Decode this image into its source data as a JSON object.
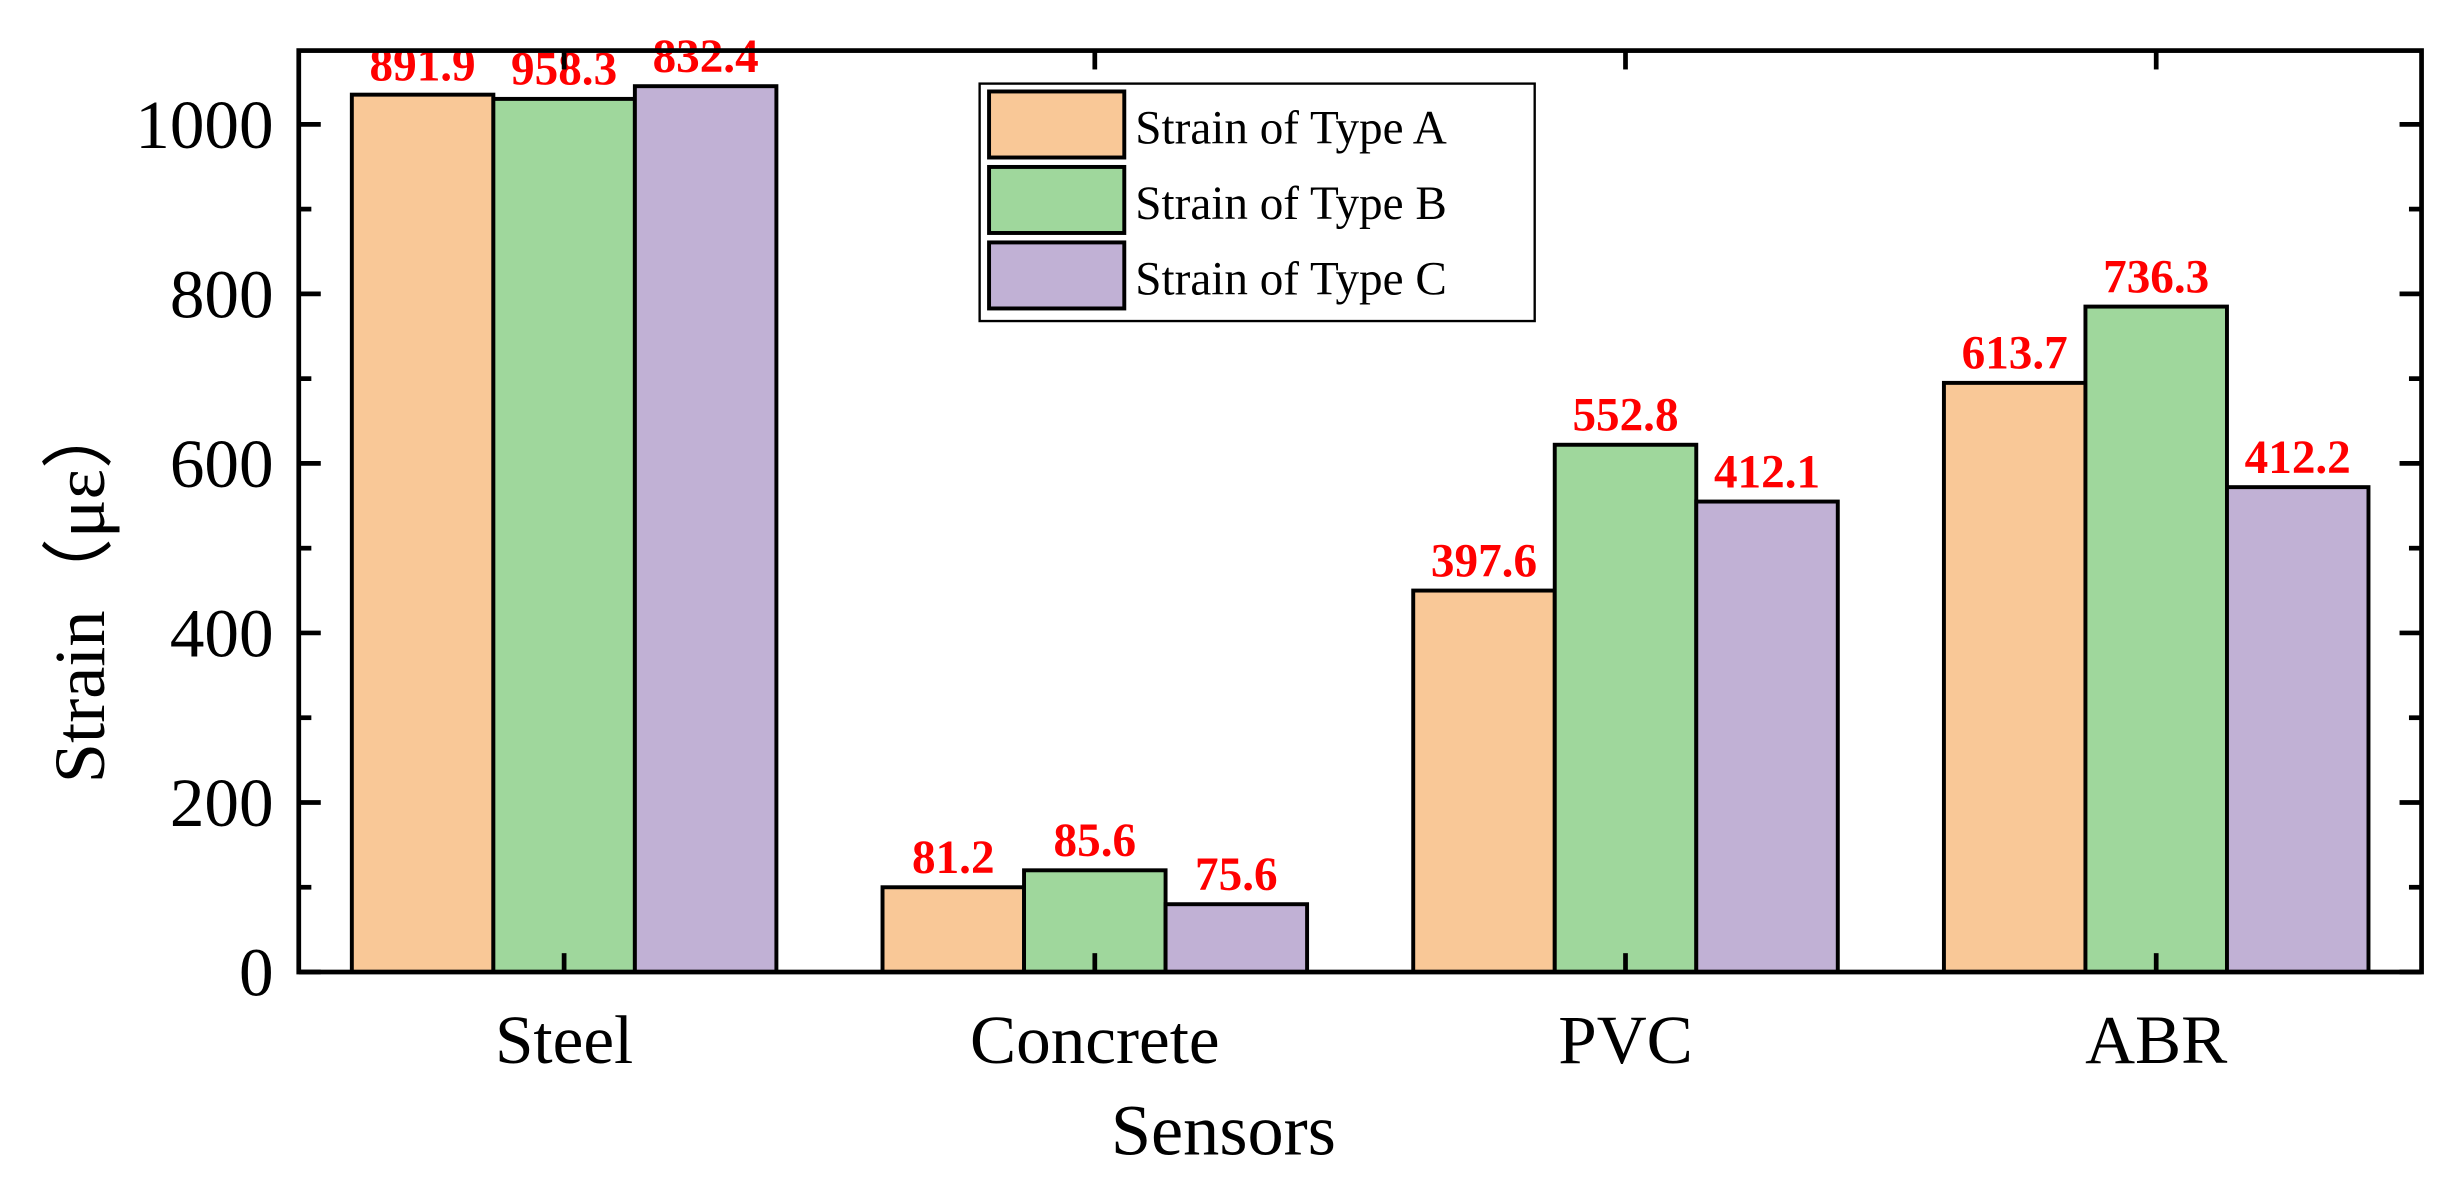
{
  "chart_data": {
    "type": "bar",
    "title": "",
    "xlabel": "Sensors",
    "ylabel": "Strain（με）",
    "ylim": [
      0,
      1087
    ],
    "yticks": [
      0,
      200,
      400,
      600,
      800,
      1000
    ],
    "ytick_labels": [
      "0",
      "200",
      "400",
      "600",
      "800",
      "1000"
    ],
    "minor_ytick_step": 100,
    "categories": [
      "Steel",
      "Concrete",
      "PVC",
      "ABR"
    ],
    "legend_position": "top-center",
    "grid": false,
    "series": [
      {
        "name": "Strain of Type A",
        "color": "#F9C897",
        "values": [
          1035,
          100,
          450,
          695
        ],
        "labels": [
          "891.9",
          "81.2",
          "397.6",
          "613.7"
        ]
      },
      {
        "name": "Strain of Type B",
        "color": "#9FD79C",
        "values": [
          1030,
          120,
          622,
          785
        ],
        "labels": [
          "958.3",
          "85.6",
          "552.8",
          "736.3"
        ]
      },
      {
        "name": "Strain of Type C",
        "color": "#C1B1D5",
        "values": [
          1045,
          80,
          555,
          572
        ],
        "labels": [
          "832.4",
          "75.6",
          "412.1",
          "412.2"
        ]
      }
    ],
    "label_color": "#FF0000"
  }
}
